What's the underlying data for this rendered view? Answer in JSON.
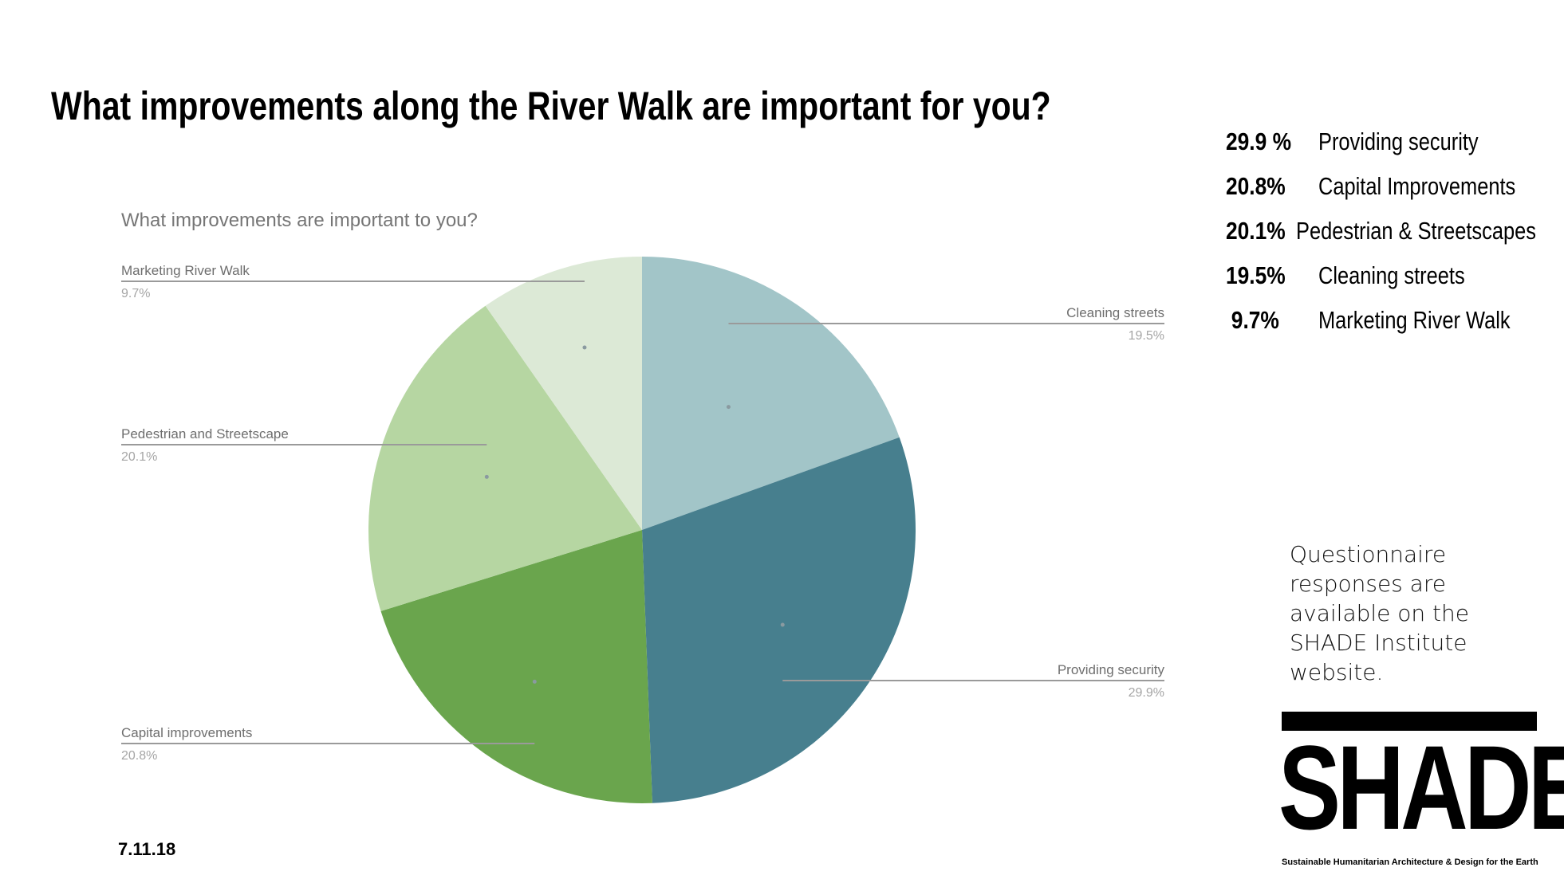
{
  "slide": {
    "title": "What improvements along the River Walk are important for you?",
    "date": "7.11.18",
    "note": "Questionnaire responses are available on the SHADE Institute website."
  },
  "summary": [
    {
      "pct": "29.9 %",
      "label": "Providing security"
    },
    {
      "pct": "20.8%",
      "label": "Capital Improvements"
    },
    {
      "pct": "20.1%",
      "label": "Pedestrian & Streetscapes"
    },
    {
      "pct": "19.5%",
      "label": "Cleaning streets"
    },
    {
      "pct": "9.7%",
      "label": "Marketing River Walk"
    }
  ],
  "logo": {
    "word": "SHADE",
    "tagline": "Sustainable Humanitarian Architecture & Design for the Earth"
  },
  "chart_data": {
    "type": "pie",
    "title": "What improvements are important to you?",
    "categories": [
      "Cleaning streets",
      "Providing security",
      "Capital improvements",
      "Pedestrian and Streetscape",
      "Marketing River Walk"
    ],
    "values": [
      19.5,
      29.9,
      20.8,
      20.1,
      9.7
    ],
    "labels": [
      "19.5%",
      "29.9%",
      "20.8%",
      "20.1%",
      "9.7%"
    ],
    "colors": [
      "#a2c5c8",
      "#477f8e",
      "#6aa54d",
      "#b6d6a2",
      "#dce9d6"
    ],
    "start": "12 o'clock",
    "direction": "clockwise",
    "legend": "none"
  }
}
